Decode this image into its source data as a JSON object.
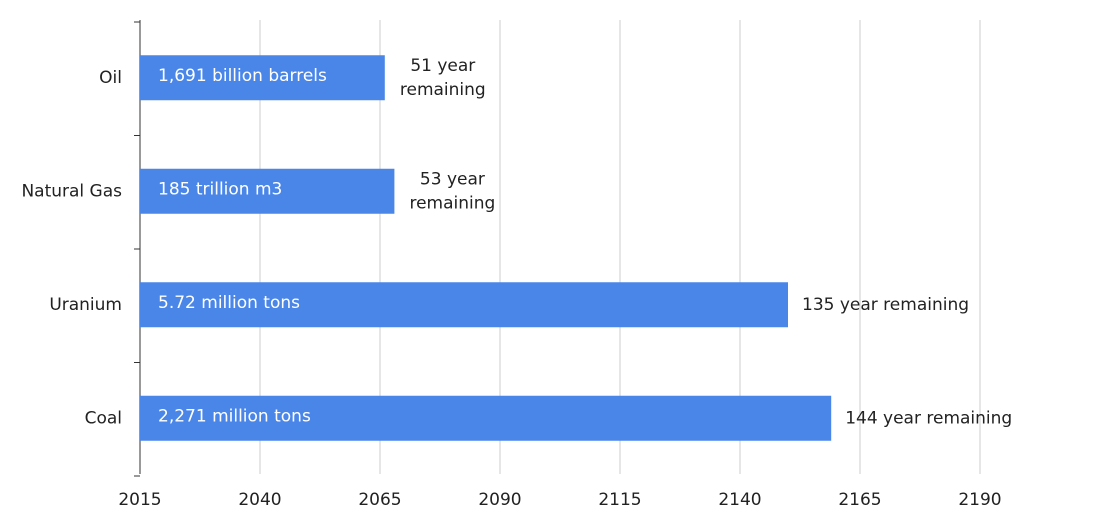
{
  "chart_data": {
    "type": "hbar",
    "categories": [
      "Oil",
      "Natural Gas",
      "Uranium",
      "Coal"
    ],
    "values": [
      2066,
      2068,
      2150,
      2159
    ],
    "reserves": [
      "1,691 billion barrels",
      "185 trillion m3",
      "5.72 million tons",
      "2,271 million tons"
    ],
    "remaining": [
      "51 year remaining",
      "53 year remaining",
      "135 year remaining",
      "144 year remaining"
    ],
    "color": "#4a86e8",
    "xlim": [
      2015,
      2215
    ],
    "xticks": [
      2015,
      2040,
      2065,
      2090,
      2115,
      2140,
      2165,
      2190
    ],
    "grid": true
  }
}
